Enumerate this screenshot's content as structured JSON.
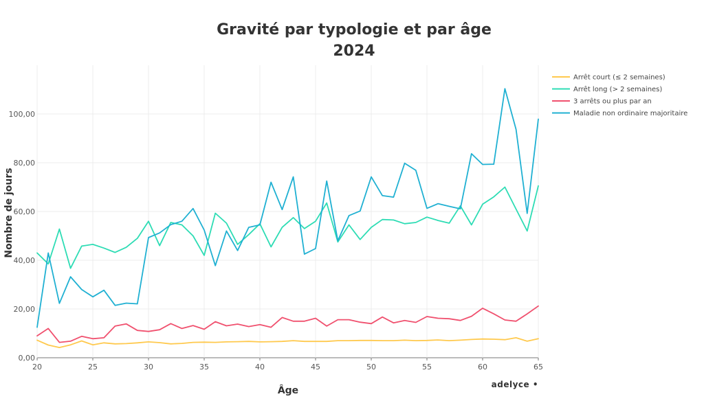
{
  "chart_data": {
    "type": "line",
    "title": "Gravité par typologie et par âge",
    "subtitle": "2024",
    "xlabel": "Âge",
    "ylabel": "Nombre de jours",
    "xlim": [
      20,
      65
    ],
    "ylim": [
      0,
      120
    ],
    "x_ticks": [
      "20",
      "25",
      "30",
      "35",
      "40",
      "45",
      "50",
      "55",
      "60",
      "65"
    ],
    "y_ticks": [
      "0,00",
      "20,00",
      "40,00",
      "60,00",
      "80,00",
      "100,00"
    ],
    "grid": true,
    "legend_position": "top-right",
    "x": [
      20,
      21,
      22,
      23,
      24,
      25,
      26,
      27,
      28,
      29,
      30,
      31,
      32,
      33,
      34,
      35,
      36,
      37,
      38,
      39,
      40,
      41,
      42,
      43,
      44,
      45,
      46,
      47,
      48,
      49,
      50,
      51,
      52,
      53,
      54,
      55,
      56,
      57,
      58,
      59,
      60,
      61,
      62,
      63,
      64,
      65
    ],
    "series": [
      {
        "name": "Arrêt court (≤ 2 semaines)",
        "color": "#ffc94d",
        "values": [
          7.2,
          5.2,
          4.2,
          5.3,
          6.9,
          5.3,
          6.1,
          5.7,
          5.8,
          6.1,
          6.5,
          6.2,
          5.7,
          5.9,
          6.3,
          6.4,
          6.3,
          6.5,
          6.6,
          6.7,
          6.5,
          6.6,
          6.7,
          7.0,
          6.7,
          6.7,
          6.7,
          7.0,
          7.0,
          7.1,
          7.1,
          7.0,
          7.0,
          7.2,
          7.0,
          7.1,
          7.3,
          7.0,
          7.2,
          7.5,
          7.7,
          7.6,
          7.4,
          8.2,
          6.8,
          7.8
        ]
      },
      {
        "name": "Arrêt long (> 2 semaines)",
        "color": "#2ddcb4",
        "values": [
          43.0,
          38.5,
          52.8,
          36.7,
          45.8,
          46.5,
          45.0,
          43.2,
          45.3,
          49.0,
          56.0,
          46.0,
          55.5,
          54.5,
          50.0,
          42.0,
          59.3,
          55.2,
          46.5,
          50.5,
          55.0,
          45.5,
          53.5,
          57.5,
          53.0,
          56.0,
          63.5,
          47.5,
          54.5,
          48.5,
          53.5,
          56.7,
          56.5,
          55.0,
          55.5,
          57.7,
          56.3,
          55.2,
          62.3,
          54.5,
          63.0,
          66.0,
          70.0,
          61.0,
          52.0,
          70.5
        ]
      },
      {
        "name": "3 arrêts ou plus par an",
        "color": "#f0506e",
        "values": [
          9.0,
          12.0,
          6.3,
          6.8,
          8.8,
          7.8,
          8.2,
          13.0,
          13.9,
          11.2,
          10.8,
          11.5,
          14.0,
          12.0,
          13.2,
          11.7,
          14.8,
          13.1,
          13.8,
          12.8,
          13.6,
          12.5,
          16.5,
          15.0,
          15.0,
          16.2,
          13.0,
          15.6,
          15.6,
          14.6,
          14.0,
          16.7,
          14.3,
          15.3,
          14.5,
          16.9,
          16.2,
          16.0,
          15.3,
          17.0,
          20.3,
          18.0,
          15.5,
          15.0,
          18.0,
          21.2
        ]
      },
      {
        "name": "Maladie non ordinaire majoritaire",
        "color": "#1fb0d2",
        "values": [
          12.5,
          43.0,
          22.3,
          33.2,
          28.0,
          25.0,
          27.7,
          21.5,
          22.4,
          22.1,
          49.3,
          51.2,
          54.6,
          56.0,
          61.2,
          52.4,
          37.8,
          52.0,
          44.0,
          53.5,
          54.5,
          72.0,
          60.8,
          74.2,
          42.5,
          44.8,
          72.5,
          48.0,
          58.3,
          60.2,
          74.2,
          66.5,
          65.9,
          79.8,
          76.9,
          61.3,
          63.2,
          62.1,
          61.1,
          83.7,
          79.3,
          79.4,
          110.4,
          93.7,
          59.2,
          97.9
        ]
      }
    ]
  },
  "branding": {
    "text": "adelyce •"
  }
}
